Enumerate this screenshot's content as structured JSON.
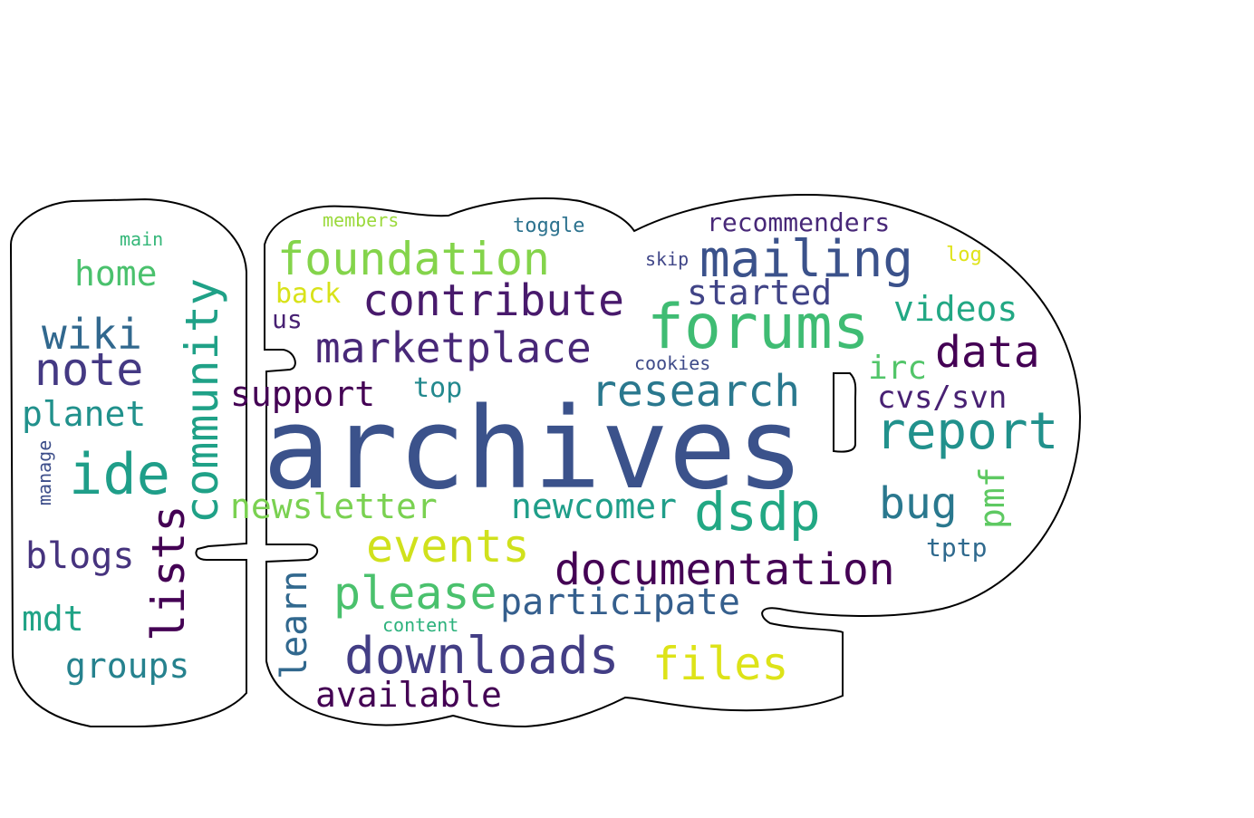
{
  "words": [
    {
      "text": "archives",
      "color": "#3b528b"
    },
    {
      "text": "forums",
      "color": "#3fbc73"
    },
    {
      "text": "mailing",
      "color": "#3b528b"
    },
    {
      "text": "foundation",
      "color": "#84d44b"
    },
    {
      "text": "contribute",
      "color": "#481a6c"
    },
    {
      "text": "marketplace",
      "color": "#482878"
    },
    {
      "text": "research",
      "color": "#2a788e"
    },
    {
      "text": "report",
      "color": "#21918c"
    },
    {
      "text": "data",
      "color": "#440154"
    },
    {
      "text": "dsdp",
      "color": "#22a884"
    },
    {
      "text": "documentation",
      "color": "#440154"
    },
    {
      "text": "downloads",
      "color": "#433e85"
    },
    {
      "text": "files",
      "color": "#dde318"
    },
    {
      "text": "events",
      "color": "#d0e11c"
    },
    {
      "text": "please",
      "color": "#4ac16d"
    },
    {
      "text": "participate",
      "color": "#355f8d"
    },
    {
      "text": "newcomer",
      "color": "#1f9e89"
    },
    {
      "text": "bug",
      "color": "#2a788e"
    },
    {
      "text": "newsletter",
      "color": "#7ad151"
    },
    {
      "text": "community",
      "color": "#1fa187"
    },
    {
      "text": "lists",
      "color": "#440154"
    },
    {
      "text": "learn",
      "color": "#31688e"
    },
    {
      "text": "ide",
      "color": "#1f9e89"
    },
    {
      "text": "note",
      "color": "#443983"
    },
    {
      "text": "wiki",
      "color": "#31688e"
    },
    {
      "text": "home",
      "color": "#4ac16d"
    },
    {
      "text": "planet",
      "color": "#21918c"
    },
    {
      "text": "blogs",
      "color": "#46337e"
    },
    {
      "text": "mdt",
      "color": "#20a386"
    },
    {
      "text": "groups",
      "color": "#26828e"
    },
    {
      "text": "available",
      "color": "#440154"
    },
    {
      "text": "support",
      "color": "#440154"
    },
    {
      "text": "started",
      "color": "#414487"
    },
    {
      "text": "videos",
      "color": "#22a884"
    },
    {
      "text": "irc",
      "color": "#52c569"
    },
    {
      "text": "cvs/svn",
      "color": "#482173"
    },
    {
      "text": "pmf",
      "color": "#5ec962"
    },
    {
      "text": "tptp",
      "color": "#306a8e"
    },
    {
      "text": "recommenders",
      "color": "#482878"
    },
    {
      "text": "top",
      "color": "#23898e"
    },
    {
      "text": "back",
      "color": "#d8e219"
    },
    {
      "text": "us",
      "color": "#482173"
    },
    {
      "text": "members",
      "color": "#9bd93c"
    },
    {
      "text": "toggle",
      "color": "#2c728e"
    },
    {
      "text": "skip",
      "color": "#404688"
    },
    {
      "text": "log",
      "color": "#dfe318"
    },
    {
      "text": "cookies",
      "color": "#3e4a89"
    },
    {
      "text": "content",
      "color": "#2db27d"
    },
    {
      "text": "main",
      "color": "#35b779"
    },
    {
      "text": "manage",
      "color": "#3d4e8a"
    }
  ]
}
